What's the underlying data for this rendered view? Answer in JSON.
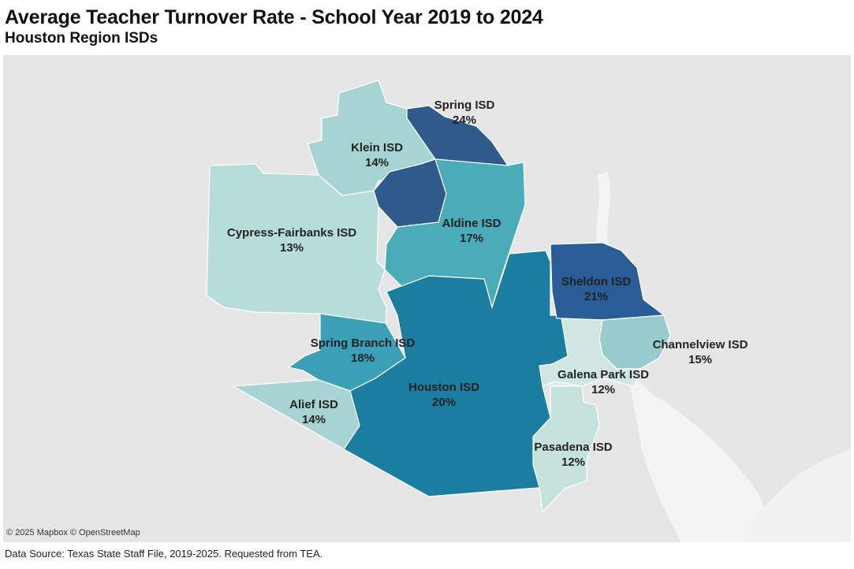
{
  "title": "Average Teacher Turnover Rate - School Year 2019 to 2024",
  "subtitle": "Houston Region ISDs",
  "attribution": "© 2025 Mapbox © OpenStreetMap",
  "source": "Data Source: Texas State Staff File, 2019-2025. Requested from TEA.",
  "colors": {
    "background": "#e6e6e6",
    "water": "#f2f2f2",
    "rate_low": "#c8e3df",
    "rate_mid": "#44a9bb",
    "rate_high": "#2b5a8f"
  },
  "districts": [
    {
      "name": "Spring ISD",
      "rate": "24%",
      "color": "#2e5a8c"
    },
    {
      "name": "Klein ISD",
      "rate": "14%",
      "color": "#a7d4d2"
    },
    {
      "name": "Aldine ISD",
      "rate": "17%",
      "color": "#4aabb9"
    },
    {
      "name": "Cypress-Fairbanks ISD",
      "rate": "13%",
      "color": "#b7ddd9"
    },
    {
      "name": "Sheldon ISD",
      "rate": "21%",
      "color": "#2a5d96"
    },
    {
      "name": "Spring Branch ISD",
      "rate": "18%",
      "color": "#3b9fb6"
    },
    {
      "name": "Channelview ISD",
      "rate": "15%",
      "color": "#98cbcd"
    },
    {
      "name": "Galena Park ISD",
      "rate": "12%",
      "color": "#cfe6e2"
    },
    {
      "name": "Houston ISD",
      "rate": "20%",
      "color": "#1b7ea1"
    },
    {
      "name": "Alief ISD",
      "rate": "14%",
      "color": "#a7d4d2"
    },
    {
      "name": "Pasadena ISD",
      "rate": "12%",
      "color": "#c6e2dd"
    }
  ]
}
